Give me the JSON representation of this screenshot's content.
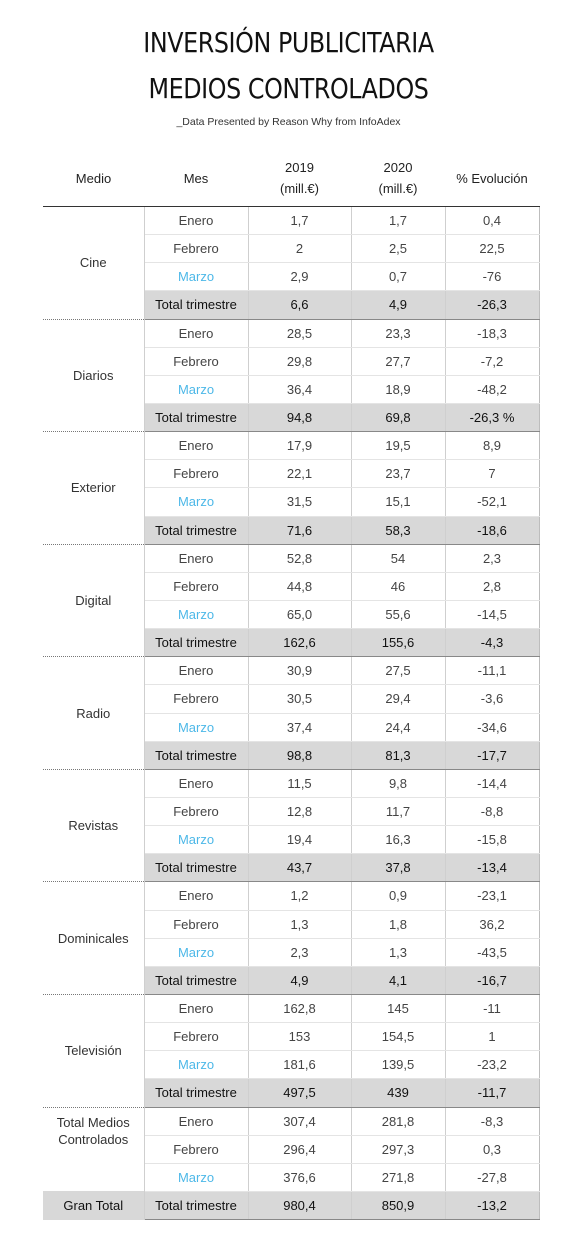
{
  "title_line1": "INVERSIÓN PUBLICITARIA",
  "title_line2": "MEDIOS CONTROLADOS",
  "subtitle": "_Data Presented by Reason Why from InfoAdex",
  "headers": {
    "medio": "Medio",
    "mes": "Mes",
    "y2019": "2019",
    "y2020": "2020",
    "unit": "(mill.€)",
    "evol": "% Evolución"
  },
  "chart_data": {
    "type": "table",
    "columns": [
      "Medio",
      "Mes",
      "2019 (mill.€)",
      "2020 (mill.€)",
      "% Evolución"
    ],
    "groups": [
      {
        "medio": "Cine",
        "rows": [
          {
            "mes": "Enero",
            "v2019": "1,7",
            "v2020": "1,7",
            "evol": "0,4"
          },
          {
            "mes": "Febrero",
            "v2019": "2",
            "v2020": "2,5",
            "evol": "22,5"
          },
          {
            "mes": "Marzo",
            "v2019": "2,9",
            "v2020": "0,7",
            "evol": "-76"
          },
          {
            "mes": "Total trimestre",
            "v2019": "6,6",
            "v2020": "4,9",
            "evol": "-26,3"
          }
        ]
      },
      {
        "medio": "Diarios",
        "rows": [
          {
            "mes": "Enero",
            "v2019": "28,5",
            "v2020": "23,3",
            "evol": "-18,3"
          },
          {
            "mes": "Febrero",
            "v2019": "29,8",
            "v2020": "27,7",
            "evol": "-7,2"
          },
          {
            "mes": "Marzo",
            "v2019": "36,4",
            "v2020": "18,9",
            "evol": "-48,2"
          },
          {
            "mes": "Total trimestre",
            "v2019": "94,8",
            "v2020": "69,8",
            "evol": "-26,3 %"
          }
        ]
      },
      {
        "medio": "Exterior",
        "rows": [
          {
            "mes": "Enero",
            "v2019": "17,9",
            "v2020": "19,5",
            "evol": "8,9"
          },
          {
            "mes": "Febrero",
            "v2019": "22,1",
            "v2020": "23,7",
            "evol": "7"
          },
          {
            "mes": "Marzo",
            "v2019": "31,5",
            "v2020": "15,1",
            "evol": "-52,1"
          },
          {
            "mes": "Total trimestre",
            "v2019": "71,6",
            "v2020": "58,3",
            "evol": "-18,6"
          }
        ]
      },
      {
        "medio": "Digital",
        "rows": [
          {
            "mes": "Enero",
            "v2019": "52,8",
            "v2020": "54",
            "evol": "2,3"
          },
          {
            "mes": "Febrero",
            "v2019": "44,8",
            "v2020": "46",
            "evol": "2,8"
          },
          {
            "mes": "Marzo",
            "v2019": "65,0",
            "v2020": "55,6",
            "evol": "-14,5"
          },
          {
            "mes": "Total trimestre",
            "v2019": "162,6",
            "v2020": "155,6",
            "evol": "-4,3"
          }
        ]
      },
      {
        "medio": "Radio",
        "rows": [
          {
            "mes": "Enero",
            "v2019": "30,9",
            "v2020": "27,5",
            "evol": "-11,1"
          },
          {
            "mes": "Febrero",
            "v2019": "30,5",
            "v2020": "29,4",
            "evol": "-3,6"
          },
          {
            "mes": "Marzo",
            "v2019": "37,4",
            "v2020": "24,4",
            "evol": "-34,6"
          },
          {
            "mes": "Total trimestre",
            "v2019": "98,8",
            "v2020": "81,3",
            "evol": "-17,7"
          }
        ]
      },
      {
        "medio": "Revistas",
        "rows": [
          {
            "mes": "Enero",
            "v2019": "11,5",
            "v2020": "9,8",
            "evol": "-14,4"
          },
          {
            "mes": "Febrero",
            "v2019": "12,8",
            "v2020": "11,7",
            "evol": "-8,8"
          },
          {
            "mes": "Marzo",
            "v2019": "19,4",
            "v2020": "16,3",
            "evol": "-15,8"
          },
          {
            "mes": "Total trimestre",
            "v2019": "43,7",
            "v2020": "37,8",
            "evol": "-13,4"
          }
        ]
      },
      {
        "medio": "Dominicales",
        "rows": [
          {
            "mes": "Enero",
            "v2019": "1,2",
            "v2020": "0,9",
            "evol": "-23,1"
          },
          {
            "mes": "Febrero",
            "v2019": "1,3",
            "v2020": "1,8",
            "evol": "36,2"
          },
          {
            "mes": "Marzo",
            "v2019": "2,3",
            "v2020": "1,3",
            "evol": "-43,5"
          },
          {
            "mes": "Total trimestre",
            "v2019": "4,9",
            "v2020": "4,1",
            "evol": "-16,7"
          }
        ]
      },
      {
        "medio": "Televisión",
        "rows": [
          {
            "mes": "Enero",
            "v2019": "162,8",
            "v2020": "145",
            "evol": "-11"
          },
          {
            "mes": "Febrero",
            "v2019": "153",
            "v2020": "154,5",
            "evol": "1"
          },
          {
            "mes": "Marzo",
            "v2019": "181,6",
            "v2020": "139,5",
            "evol": "-23,2"
          },
          {
            "mes": "Total trimestre",
            "v2019": "497,5",
            "v2020": "439",
            "evol": "-11,7"
          }
        ]
      },
      {
        "medio": "Total Medios Controlados",
        "rows": [
          {
            "mes": "Enero",
            "v2019": "307,4",
            "v2020": "281,8",
            "evol": "-8,3"
          },
          {
            "mes": "Febrero",
            "v2019": "296,4",
            "v2020": "297,3",
            "evol": "0,3"
          },
          {
            "mes": "Marzo",
            "v2019": "376,6",
            "v2020": "271,8",
            "evol": "-27,8"
          }
        ]
      }
    ],
    "gran_total": {
      "medio": "Gran Total",
      "mes": "Total trimestre",
      "v2019": "980,4",
      "v2020": "850,9",
      "evol": "-13,2"
    }
  },
  "colors": {
    "marzo_text": "#4db8e8",
    "total_row_bg": "#d8d8d8"
  }
}
